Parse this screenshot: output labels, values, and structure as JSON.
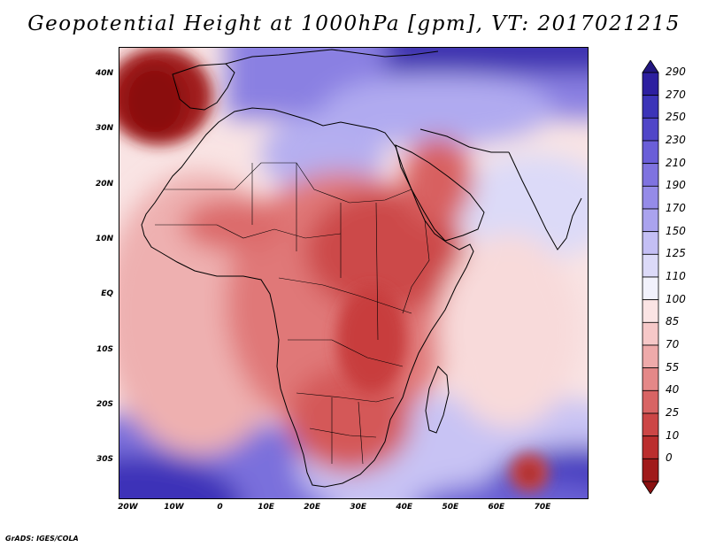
{
  "title": "Geopotential Height at 1000hPa [gpm], VT: 2017021215",
  "credit": "GrADS: IGES/COLA",
  "axes": {
    "x_labels": [
      "20W",
      "10W",
      "0",
      "10E",
      "20E",
      "30E",
      "40E",
      "50E",
      "60E",
      "70E"
    ],
    "x_values": [
      -20,
      -10,
      0,
      10,
      20,
      30,
      40,
      50,
      60,
      70
    ],
    "y_labels": [
      "40N",
      "30N",
      "20N",
      "10N",
      "EQ",
      "10S",
      "20S",
      "30S"
    ],
    "y_values": [
      40,
      30,
      20,
      10,
      0,
      -10,
      -20,
      -30
    ],
    "lon_range": [
      -22,
      80
    ],
    "lat_range": [
      -37,
      45
    ]
  },
  "colorbar": {
    "levels": [
      "290",
      "270",
      "250",
      "230",
      "210",
      "190",
      "170",
      "150",
      "125",
      "110",
      "100",
      "85",
      "70",
      "55",
      "40",
      "25",
      "10",
      "0"
    ],
    "colors": [
      "#2d1fa0",
      "#3c34b8",
      "#5046c8",
      "#6a5ed8",
      "#7f73e0",
      "#958be8",
      "#aaa3ee",
      "#c4bff4",
      "#dcdaf8",
      "#f2f2fc",
      "#fbe4e4",
      "#f6c8c8",
      "#eeaaaa",
      "#e48888",
      "#d86464",
      "#cc4646",
      "#bb2e2e",
      "#a01a1a",
      "#8a1010"
    ],
    "top_color": "#221680",
    "bottom_color": "#8a1010"
  }
}
